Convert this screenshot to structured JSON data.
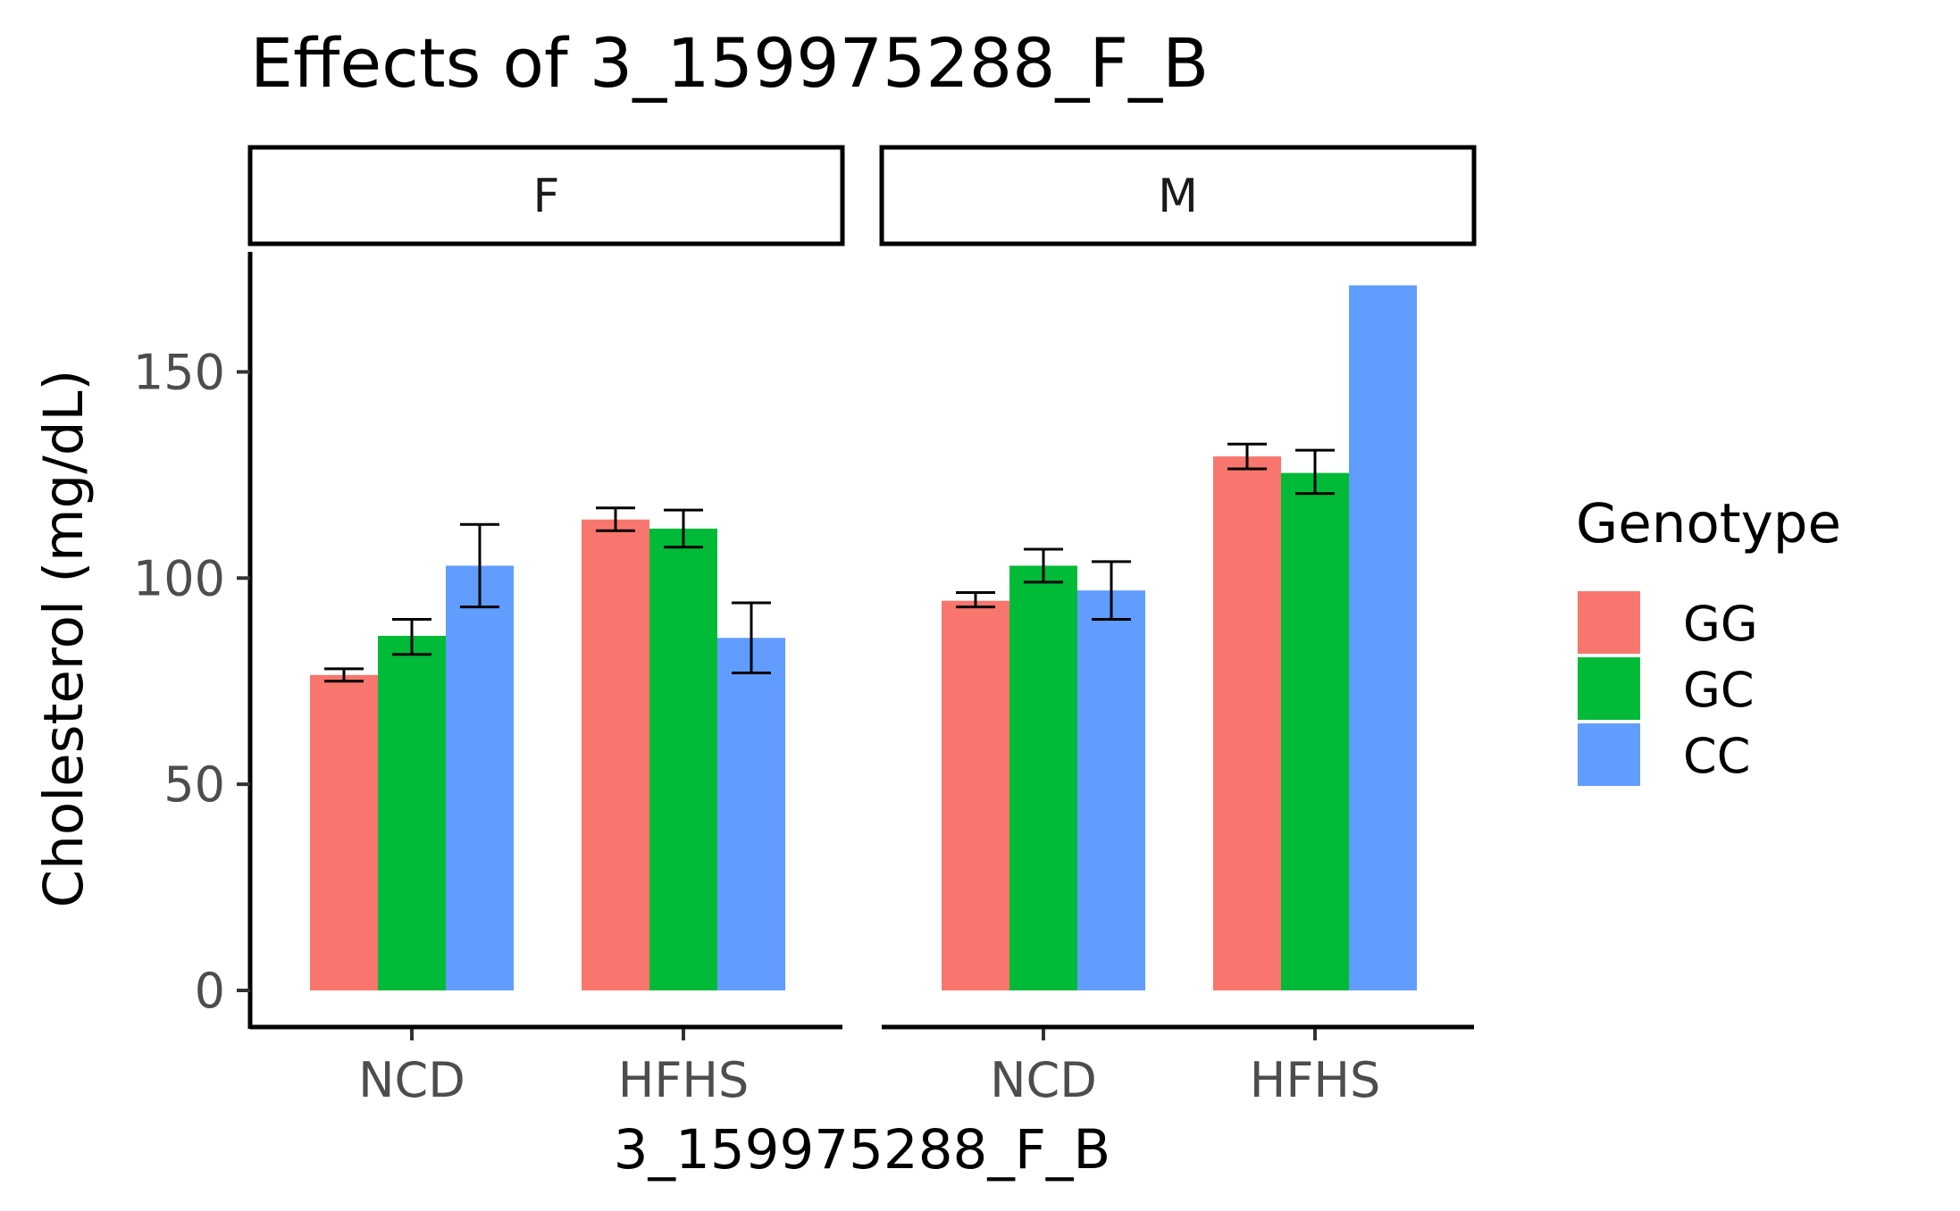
{
  "chart_data": {
    "type": "bar",
    "title": "Effects of  3_159975288_F_B",
    "xlabel": "3_159975288_F_B",
    "ylabel": "Cholesterol (mg/dL)",
    "ylim": [
      0,
      175
    ],
    "yticks": [
      0,
      50,
      100,
      150
    ],
    "ytick_labels": [
      "0",
      "50",
      "100",
      "150"
    ],
    "categories": [
      "NCD",
      "HFHS"
    ],
    "legend": {
      "title": "Genotype",
      "position": "right",
      "entries": [
        "GG",
        "GC",
        "CC"
      ]
    },
    "colors": {
      "GG": "#F8766D",
      "GC": "#00BA38",
      "CC": "#619CFF"
    },
    "grid": false,
    "panels": [
      {
        "label": "F",
        "series": [
          {
            "name": "GG",
            "values": [
              76.5,
              114.2
            ],
            "errors": [
              [
                75.0,
                78.0
              ],
              [
                111.5,
                117.0
              ]
            ]
          },
          {
            "name": "GC",
            "values": [
              86.0,
              112.0
            ],
            "errors": [
              [
                81.5,
                90.0
              ],
              [
                107.5,
                116.5
              ]
            ]
          },
          {
            "name": "CC",
            "values": [
              103.0,
              85.5
            ],
            "errors": [
              [
                93.0,
                113.0
              ],
              [
                77.0,
                94.0
              ]
            ]
          }
        ]
      },
      {
        "label": "M",
        "series": [
          {
            "name": "GG",
            "values": [
              94.5,
              129.5
            ],
            "errors": [
              [
                93.0,
                96.5
              ],
              [
                126.5,
                132.5
              ]
            ]
          },
          {
            "name": "GC",
            "values": [
              103.0,
              125.5
            ],
            "errors": [
              [
                99.0,
                107.0
              ],
              [
                120.5,
                131.0
              ]
            ]
          },
          {
            "name": "CC",
            "values": [
              97.0,
              171.0
            ],
            "errors": [
              [
                90.0,
                104.0
              ],
              null
            ]
          }
        ]
      }
    ]
  }
}
